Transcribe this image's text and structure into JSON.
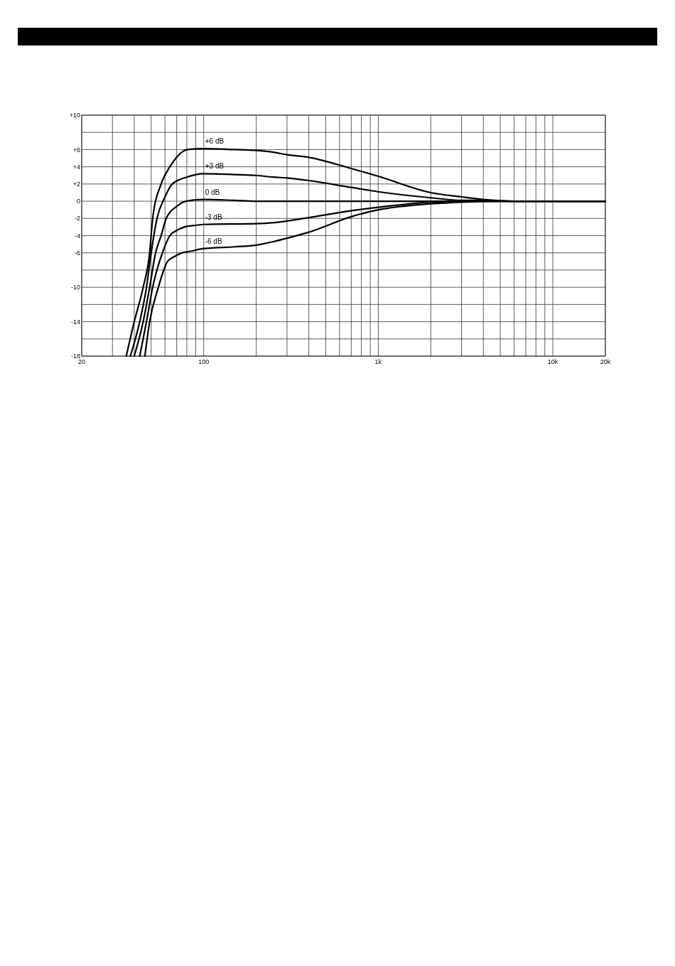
{
  "chart_data": {
    "type": "line",
    "log": "x",
    "grid": true,
    "marker": "none",
    "line_style": "solid",
    "xlim": [
      20,
      20000
    ],
    "xticks": [
      20,
      {
        "value": 30,
        "label": null
      },
      {
        "value": 40,
        "label": null
      },
      {
        "value": 50,
        "label": null
      },
      {
        "value": 60,
        "label": null
      },
      {
        "value": 70,
        "label": null
      },
      {
        "value": 80,
        "label": null
      },
      {
        "value": 90,
        "label": null
      },
      100,
      {
        "value": 200,
        "label": null
      },
      {
        "value": 300,
        "label": null
      },
      {
        "value": 400,
        "label": null
      },
      {
        "value": 500,
        "label": null
      },
      {
        "value": 600,
        "label": null
      },
      {
        "value": 700,
        "label": null
      },
      {
        "value": 800,
        "label": null
      },
      {
        "value": 900,
        "label": null
      },
      {
        "value": 1000,
        "label": "1k"
      },
      {
        "value": 2000,
        "label": null
      },
      {
        "value": 3000,
        "label": null
      },
      {
        "value": 4000,
        "label": null
      },
      {
        "value": 5000,
        "label": null
      },
      {
        "value": 6000,
        "label": null
      },
      {
        "value": 7000,
        "label": null
      },
      {
        "value": 8000,
        "label": null
      },
      {
        "value": 9000,
        "label": null
      },
      {
        "value": 10000,
        "label": "10k"
      },
      {
        "value": 20000,
        "label": "20k"
      }
    ],
    "ylim": [
      -18,
      10
    ],
    "yticks": [
      {
        "value": 10,
        "label": "+10"
      },
      {
        "value": 8,
        "label": null
      },
      {
        "value": 6,
        "label": "+6"
      },
      {
        "value": 4,
        "label": "+4"
      },
      {
        "value": 2,
        "label": "+2"
      },
      0,
      -2,
      -4,
      -6,
      {
        "value": -8,
        "label": null
      },
      -10,
      {
        "value": -12,
        "label": null
      },
      -14,
      {
        "value": -16,
        "label": null
      },
      -18
    ],
    "series": [
      {
        "name": "+6 dB",
        "color": "#000000",
        "x": [
          36,
          40,
          45,
          49,
          51,
          57,
          64,
          81,
          100,
          150,
          200,
          250,
          300,
          400,
          700,
          1000,
          2000,
          3000,
          4000,
          6000,
          10000,
          20000
        ],
        "values": [
          -18,
          -14,
          -10,
          -6,
          -2,
          2,
          4,
          6,
          6.1,
          6,
          5.9,
          5.7,
          5.4,
          5.1,
          3.8,
          2.9,
          1,
          0.5,
          0.2,
          0,
          0,
          0
        ]
      },
      {
        "name": "+3 dB",
        "color": "#000000",
        "x": [
          38,
          43,
          47,
          50,
          54,
          60,
          66,
          80,
          100,
          150,
          200,
          250,
          300,
          400,
          700,
          1000,
          2000,
          3000,
          4000,
          6000,
          10000,
          20000
        ],
        "values": [
          -18,
          -14,
          -10,
          -6,
          -2,
          0.5,
          2,
          2.8,
          3.2,
          3.1,
          3,
          2.8,
          2.7,
          2.4,
          1.6,
          1.1,
          0.4,
          0.1,
          0.1,
          0,
          0,
          0
        ]
      },
      {
        "name": "0 dB",
        "color": "#000000",
        "x": [
          40,
          45,
          49,
          53,
          57,
          61,
          70,
          79,
          100,
          150,
          200,
          300,
          1000,
          10000,
          20000
        ],
        "values": [
          -18,
          -14,
          -10,
          -6,
          -4,
          -2,
          -0.6,
          0,
          0.2,
          0.1,
          0,
          0,
          0,
          0,
          0
        ]
      },
      {
        "name": "-3 dB",
        "color": "#000000",
        "x": [
          43,
          47,
          51,
          58,
          64,
          70,
          81,
          90,
          100,
          200,
          250,
          400,
          700,
          1000,
          2000,
          3000,
          5000,
          20000
        ],
        "values": [
          -18,
          -14,
          -10,
          -6,
          -4,
          -3.4,
          -2.9,
          -2.8,
          -2.7,
          -2.6,
          -2.5,
          -1.9,
          -1.1,
          -0.7,
          -0.1,
          0,
          0,
          0
        ]
      },
      {
        "name": "-6 dB",
        "color": "#000000",
        "x": [
          46,
          49,
          55,
          59,
          62,
          67,
          75,
          85,
          100,
          150,
          200,
          250,
          300,
          400,
          700,
          1000,
          2000,
          3000,
          5000,
          20000
        ],
        "values": [
          -18,
          -14,
          -10,
          -8,
          -7,
          -6.5,
          -6,
          -5.8,
          -5.5,
          -5.3,
          -5.1,
          -4.7,
          -4.3,
          -3.6,
          -1.8,
          -1,
          -0.3,
          -0.1,
          0,
          0
        ]
      }
    ]
  }
}
